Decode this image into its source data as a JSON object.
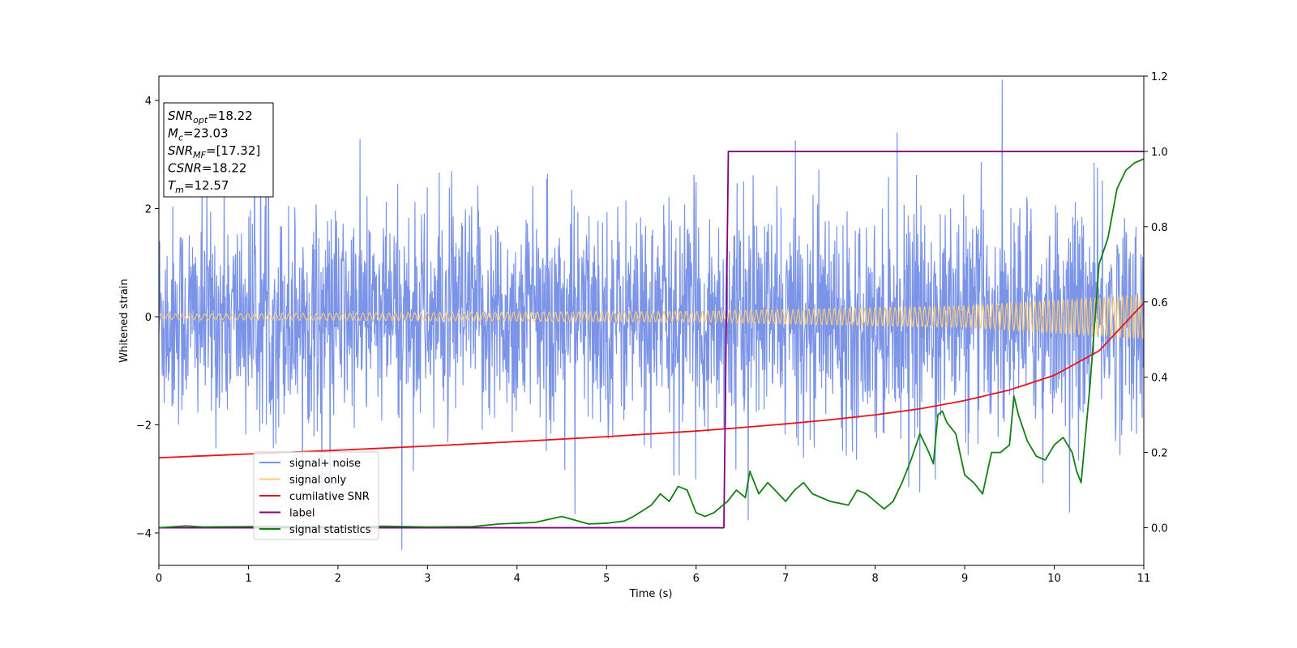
{
  "chart_data": {
    "type": "line",
    "xlabel": "Time (s)",
    "ylabel": "Whitened strain",
    "xlim": [
      0,
      11
    ],
    "ylim_left": [
      -4.6,
      4.45
    ],
    "ylim_right": [
      -0.1,
      1.2
    ],
    "x_ticks": [
      "0",
      "1",
      "2",
      "3",
      "4",
      "5",
      "6",
      "7",
      "8",
      "9",
      "10",
      "11"
    ],
    "y_ticks_left": [
      "−4",
      "−2",
      "0",
      "2",
      "4"
    ],
    "y_ticks_right": [
      "0.0",
      "0.2",
      "0.4",
      "0.6",
      "0.8",
      "1.0",
      "1.2"
    ],
    "grid": false,
    "legend_position": "lower-left",
    "info_box": {
      "lines": [
        {
          "var": "SNR",
          "sub": "opt",
          "value": "=18.22"
        },
        {
          "var": "M",
          "sub": "c",
          "value": "=23.03"
        },
        {
          "var": "SNR",
          "sub": "MF",
          "value": "=[17.32]"
        },
        {
          "var": "CSNR",
          "sub": "",
          "value": "=18.22"
        },
        {
          "var": "T",
          "sub": "m",
          "value": "=12.57"
        }
      ]
    },
    "series": [
      {
        "name": "signal+ noise",
        "color": "#7b94e8",
        "axis": "left",
        "description": "whitened noisy strain, approx. Gaussian with std ~1.0 about 0",
        "noise_std": 1.0
      },
      {
        "name": "signal only",
        "color": "#f5c97a",
        "axis": "left",
        "amplitude_at": {
          "x": [
            0,
            6,
            9,
            11
          ],
          "y": [
            0.05,
            0.1,
            0.2,
            0.4
          ]
        },
        "freq_at": {
          "x": [
            0,
            11
          ],
          "y": [
            12,
            20
          ]
        }
      },
      {
        "name": "cumilative SNR",
        "color": "#e8141a",
        "axis": "right",
        "x": [
          0,
          1,
          2,
          3,
          4,
          5,
          6,
          6.5,
          7,
          7.5,
          8,
          8.5,
          9,
          9.5,
          10,
          10.5,
          11
        ],
        "y": [
          0.186,
          0.196,
          0.206,
          0.217,
          0.229,
          0.242,
          0.257,
          0.266,
          0.276,
          0.287,
          0.3,
          0.316,
          0.338,
          0.366,
          0.405,
          0.47,
          0.597
        ]
      },
      {
        "name": "label",
        "color": "#800080",
        "axis": "right",
        "x": [
          0,
          6.31,
          6.36,
          11
        ],
        "y": [
          0,
          0,
          1,
          1
        ]
      },
      {
        "name": "signal statistics",
        "color": "#108010",
        "axis": "right",
        "x": [
          0,
          0.3,
          0.5,
          1.0,
          1.5,
          2.0,
          2.5,
          3.0,
          3.5,
          3.8,
          4.0,
          4.2,
          4.5,
          4.8,
          5.0,
          5.2,
          5.3,
          5.5,
          5.6,
          5.7,
          5.8,
          5.9,
          6.0,
          6.1,
          6.2,
          6.35,
          6.45,
          6.55,
          6.6,
          6.7,
          6.8,
          7.0,
          7.1,
          7.2,
          7.3,
          7.4,
          7.5,
          7.7,
          7.8,
          7.9,
          8.1,
          8.2,
          8.3,
          8.4,
          8.5,
          8.6,
          8.65,
          8.7,
          8.75,
          8.8,
          8.9,
          9.0,
          9.1,
          9.2,
          9.3,
          9.4,
          9.5,
          9.55,
          9.6,
          9.7,
          9.8,
          9.9,
          10.0,
          10.1,
          10.2,
          10.25,
          10.3,
          10.4,
          10.5,
          10.6,
          10.7,
          10.8,
          10.9,
          11.0
        ],
        "y": [
          0.0,
          0.005,
          0.002,
          0.003,
          0.003,
          0.002,
          0.004,
          0.002,
          0.003,
          0.01,
          0.012,
          0.014,
          0.03,
          0.01,
          0.012,
          0.018,
          0.03,
          0.06,
          0.09,
          0.07,
          0.11,
          0.1,
          0.04,
          0.03,
          0.04,
          0.07,
          0.1,
          0.08,
          0.15,
          0.09,
          0.12,
          0.07,
          0.1,
          0.12,
          0.09,
          0.08,
          0.07,
          0.06,
          0.1,
          0.09,
          0.05,
          0.07,
          0.12,
          0.18,
          0.25,
          0.2,
          0.17,
          0.3,
          0.31,
          0.28,
          0.25,
          0.14,
          0.12,
          0.09,
          0.2,
          0.2,
          0.22,
          0.35,
          0.3,
          0.23,
          0.19,
          0.18,
          0.22,
          0.24,
          0.2,
          0.15,
          0.12,
          0.38,
          0.7,
          0.77,
          0.9,
          0.95,
          0.97,
          0.98
        ]
      }
    ]
  }
}
